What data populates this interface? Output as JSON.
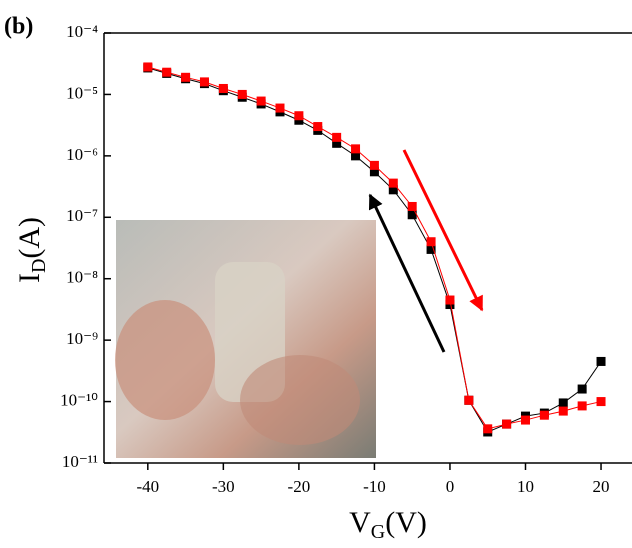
{
  "chart_data": {
    "type": "line",
    "panel_label": "(b)",
    "x_label": {
      "main": "V",
      "sub": "G",
      "unit": "(V)"
    },
    "y_label": {
      "main": "I",
      "sub": "D",
      "unit": "(A)"
    },
    "yscale": "log",
    "x": [
      -40,
      -37.5,
      -35,
      -32.5,
      -30,
      -27.5,
      -25,
      -22.5,
      -20,
      -17.5,
      -15,
      -12.5,
      -10,
      -7.5,
      -5,
      -2.5,
      0,
      2.5,
      5,
      7.5,
      10,
      12.5,
      15,
      17.5,
      20
    ],
    "series": [
      {
        "color": "#000000",
        "values": [
          2.7e-05,
          2.2e-05,
          1.8e-05,
          1.5e-05,
          1.15e-05,
          9e-06,
          7e-06,
          5.2e-06,
          3.8e-06,
          2.6e-06,
          1.6e-06,
          1e-06,
          5.5e-07,
          2.8e-07,
          1.1e-07,
          3e-08,
          3.8e-09,
          1.05e-10,
          3.2e-11,
          4.3e-11,
          5.8e-11,
          6.5e-11,
          9.5e-11,
          1.6e-10,
          4.5e-10
        ]
      },
      {
        "color": "#ff0000",
        "values": [
          2.8e-05,
          2.3e-05,
          1.9e-05,
          1.6e-05,
          1.25e-05,
          1e-05,
          7.8e-06,
          6e-06,
          4.5e-06,
          3e-06,
          2e-06,
          1.3e-06,
          7e-07,
          3.6e-07,
          1.5e-07,
          4e-08,
          4.5e-09,
          1.05e-10,
          3.6e-11,
          4.3e-11,
          5e-11,
          6e-11,
          7e-11,
          8.5e-11,
          1e-10
        ]
      }
    ],
    "xlim": [
      -45.8,
      24.1
    ],
    "xticks": [
      -40,
      -30,
      -20,
      -10,
      0,
      10,
      20
    ],
    "ylim": [
      1e-11,
      0.0001
    ],
    "yticks": [
      {
        "value": 1e-11,
        "label": "10⁻¹¹"
      },
      {
        "value": 1e-10,
        "label": "10⁻¹⁰"
      },
      {
        "value": 1e-09,
        "label": "10⁻⁹"
      },
      {
        "value": 1e-08,
        "label": "10⁻⁸"
      },
      {
        "value": 1e-07,
        "label": "10⁻⁷"
      },
      {
        "value": 1e-06,
        "label": "10⁻⁶"
      },
      {
        "value": 1e-05,
        "label": "10⁻⁵"
      },
      {
        "value": 0.0001,
        "label": "10⁻⁴"
      }
    ]
  }
}
